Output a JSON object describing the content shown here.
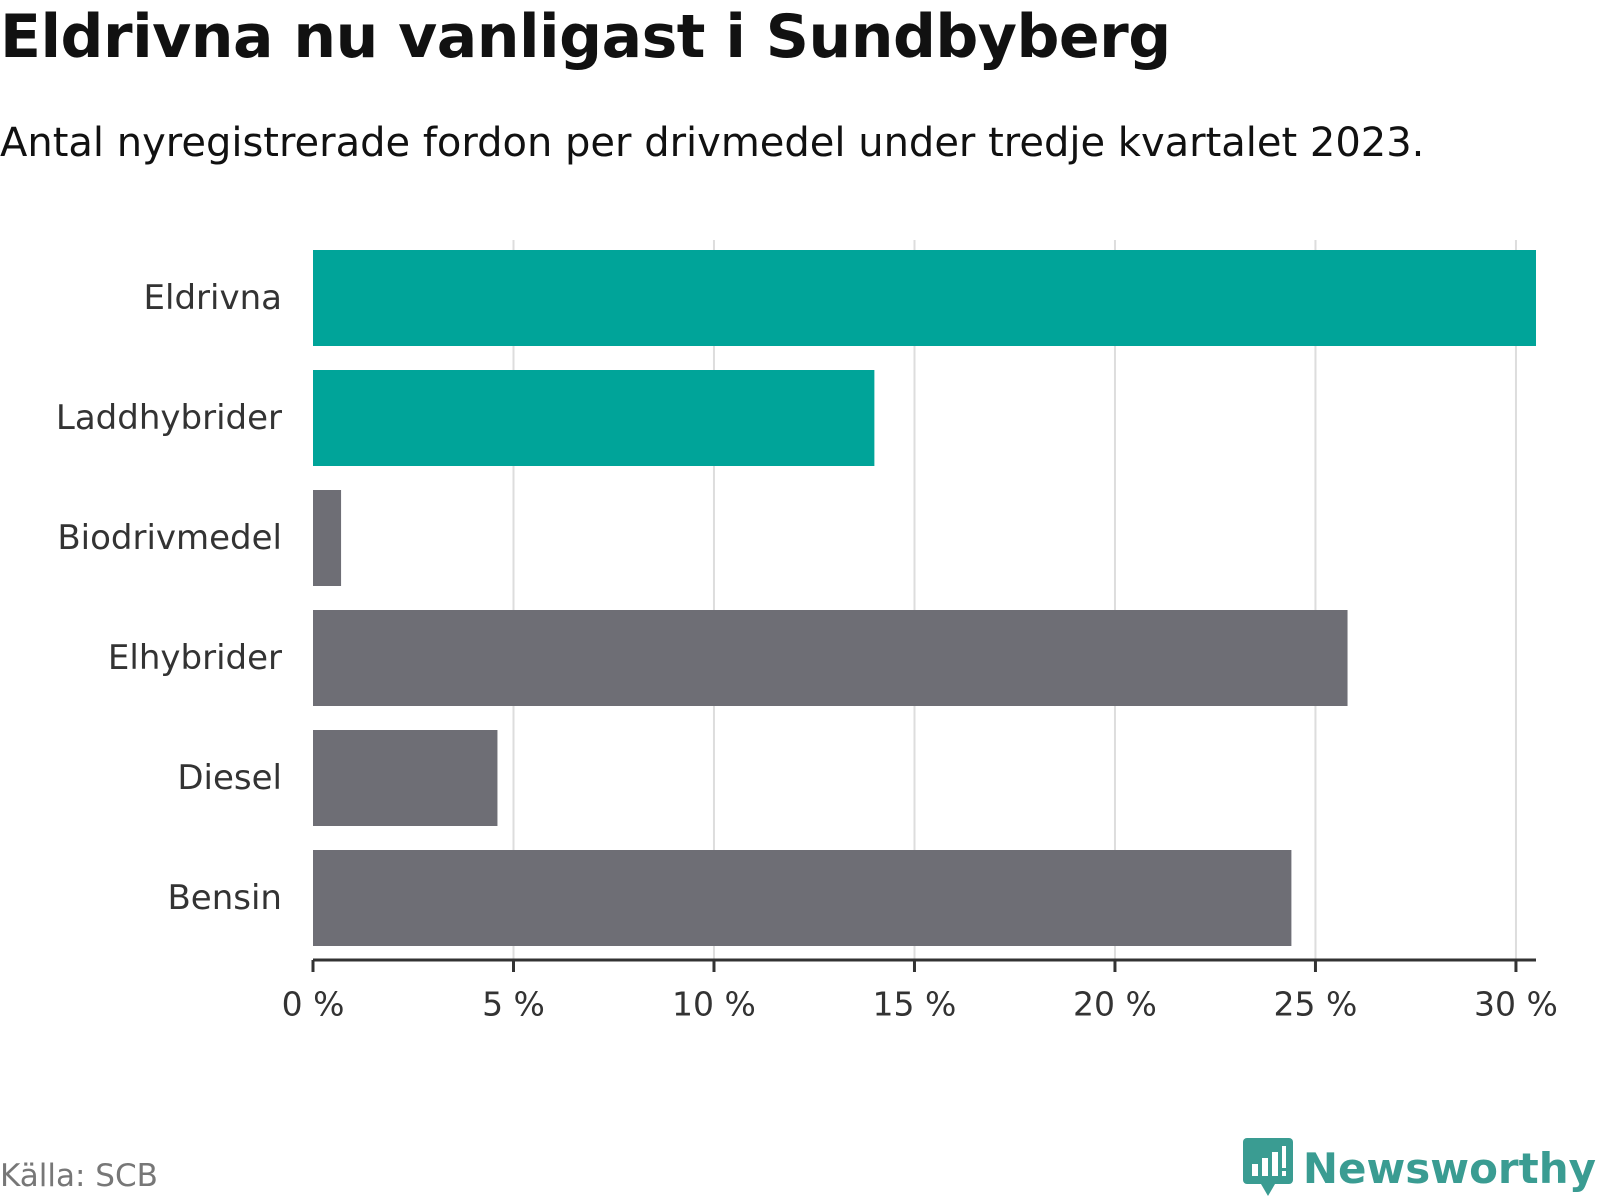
{
  "title": "Eldrivna nu vanligast i Sundbyberg",
  "subtitle": "Antal nyregistrerade fordon per drivmedel under tredje kvartalet 2023.",
  "source": "Källa: SCB",
  "brand": "Newsworthy",
  "colors": {
    "highlight": "#00a499",
    "default": "#6e6e75",
    "grid": "#dddddd",
    "axis": "#333333"
  },
  "chart_data": {
    "type": "bar",
    "orientation": "horizontal",
    "title": "Eldrivna nu vanligast i Sundbyberg",
    "subtitle": "Antal nyregistrerade fordon per drivmedel under tredje kvartalet 2023.",
    "categories": [
      "Eldrivna",
      "Laddhybrider",
      "Biodrivmedel",
      "Elhybrider",
      "Diesel",
      "Bensin"
    ],
    "values": [
      30.5,
      14.0,
      0.7,
      25.8,
      4.6,
      24.4
    ],
    "highlighted": [
      "Eldrivna",
      "Laddhybrider"
    ],
    "xlim": [
      0,
      30.5
    ],
    "xticks": [
      0,
      5,
      10,
      15,
      20,
      25,
      30
    ],
    "xtick_labels": [
      "0 %",
      "5 %",
      "10 %",
      "15 %",
      "20 %",
      "25 %",
      "30 %"
    ],
    "xlabel": "",
    "ylabel": "",
    "grid": true
  }
}
